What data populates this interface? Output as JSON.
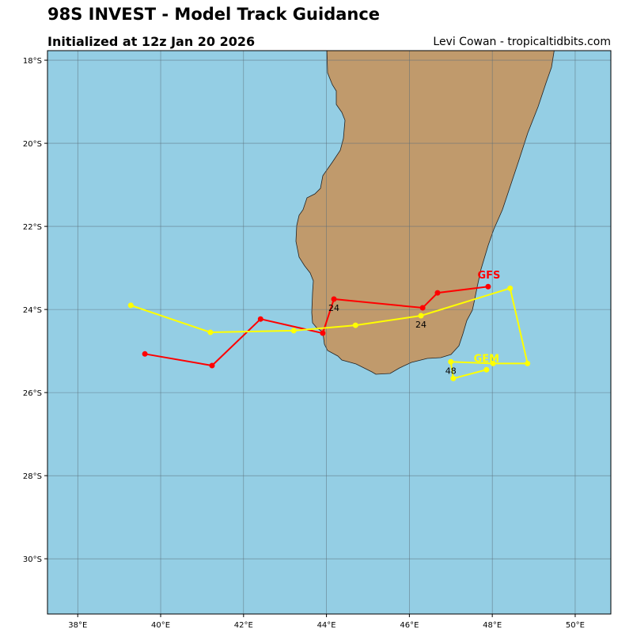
{
  "header": {
    "title": "98S INVEST - Model Track Guidance",
    "subtitle": "Initialized at 12z Jan 20 2026",
    "credit": "Levi Cowan - tropicaltidbits.com"
  },
  "chart_data": {
    "type": "line",
    "map": true,
    "xlim": [
      37.27,
      50.86
    ],
    "ylim": [
      -31.33,
      -17.77
    ],
    "grid": true,
    "x_ticks": [
      38,
      40,
      42,
      44,
      46,
      48,
      50
    ],
    "x_tick_labels": [
      "38°E",
      "40°E",
      "42°E",
      "44°E",
      "46°E",
      "48°E",
      "50°E"
    ],
    "y_ticks": [
      -18,
      -20,
      -22,
      -24,
      -26,
      -28,
      -30
    ],
    "y_tick_labels": [
      "18°S",
      "20°S",
      "22°S",
      "24°S",
      "26°S",
      "28°S",
      "30°S"
    ],
    "colors": {
      "ocean": "#94cee4",
      "land": "#c09a6c",
      "grid": "#5a6d78"
    },
    "series": [
      {
        "name": "GFS",
        "color": "#ff0000",
        "points": [
          [
            47.9,
            -23.45
          ],
          [
            46.68,
            -23.6
          ],
          [
            46.32,
            -23.96
          ],
          [
            44.18,
            -23.75
          ],
          [
            43.91,
            -24.57
          ],
          [
            42.41,
            -24.23
          ],
          [
            41.24,
            -25.35
          ],
          [
            39.62,
            -25.07
          ]
        ],
        "hour_labels": [
          {
            "text": "24",
            "lon": 44.18,
            "lat": -23.75
          }
        ]
      },
      {
        "name": "GEM",
        "color": "#ffff00",
        "points": [
          [
            47.86,
            -25.45
          ],
          [
            47.06,
            -25.66
          ],
          [
            47.0,
            -25.26
          ],
          [
            48.02,
            -25.3
          ],
          [
            48.85,
            -25.3
          ],
          [
            48.43,
            -23.49
          ],
          [
            46.28,
            -24.15
          ],
          [
            44.7,
            -24.38
          ],
          [
            43.21,
            -24.51
          ],
          [
            41.2,
            -24.55
          ],
          [
            39.28,
            -23.9
          ]
        ],
        "hour_labels": [
          {
            "text": "24",
            "lon": 46.28,
            "lat": -24.15
          },
          {
            "text": "48",
            "lon": 47.0,
            "lat": -25.26
          }
        ]
      }
    ]
  }
}
